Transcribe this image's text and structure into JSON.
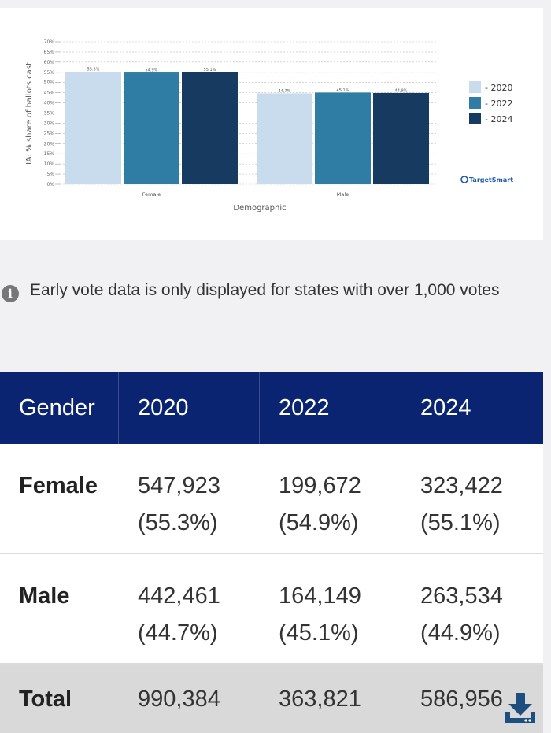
{
  "chart_data": {
    "type": "bar",
    "categories": [
      "Female",
      "Male"
    ],
    "series": [
      {
        "name": "2020",
        "values": [
          55.3,
          44.7
        ],
        "color": "#c9dcee"
      },
      {
        "name": "2022",
        "values": [
          54.9,
          45.1
        ],
        "color": "#2f7ca5"
      },
      {
        "name": "2024",
        "values": [
          55.1,
          44.9
        ],
        "color": "#163a60"
      }
    ],
    "value_labels": [
      [
        "55.3%",
        "44.7%"
      ],
      [
        "54.9%",
        "45.1%"
      ],
      [
        "55.1%",
        "44.9%"
      ]
    ],
    "xlabel": "Demographic",
    "ylabel": "IA: % share of ballots cast",
    "ylim": [
      0,
      70
    ],
    "yticks": [
      "0%",
      "5%",
      "10%",
      "15%",
      "20%",
      "25%",
      "30%",
      "35%",
      "40%",
      "45%",
      "50%",
      "55%",
      "60%",
      "65%",
      "70%"
    ],
    "grid": true,
    "legend_position": "right",
    "legend_labels": [
      "- 2020",
      "- 2022",
      "- 2024"
    ],
    "brand": "TargetSmart"
  },
  "note": {
    "icon": "info-icon",
    "text": "Early vote data is only displayed for states with over 1,000 votes"
  },
  "table": {
    "headers": [
      "Gender",
      "2020",
      "2022",
      "2024"
    ],
    "rows": [
      {
        "label": "Female",
        "cells": [
          [
            "547,923",
            "(55.3%)"
          ],
          [
            "199,672",
            "(54.9%)"
          ],
          [
            "323,422",
            "(55.1%)"
          ]
        ]
      },
      {
        "label": "Male",
        "cells": [
          [
            "442,461",
            "(44.7%)"
          ],
          [
            "164,149",
            "(45.1%)"
          ],
          [
            "263,534",
            "(44.9%)"
          ]
        ]
      }
    ],
    "total": {
      "label": "Total",
      "cells": [
        "990,384",
        "363,821",
        "586,956"
      ]
    }
  },
  "colors": {
    "header_bg": "#0b2471",
    "total_bg": "#d9d9d9",
    "download_icon": "#1c4e80"
  },
  "download_icon": "download-icon"
}
